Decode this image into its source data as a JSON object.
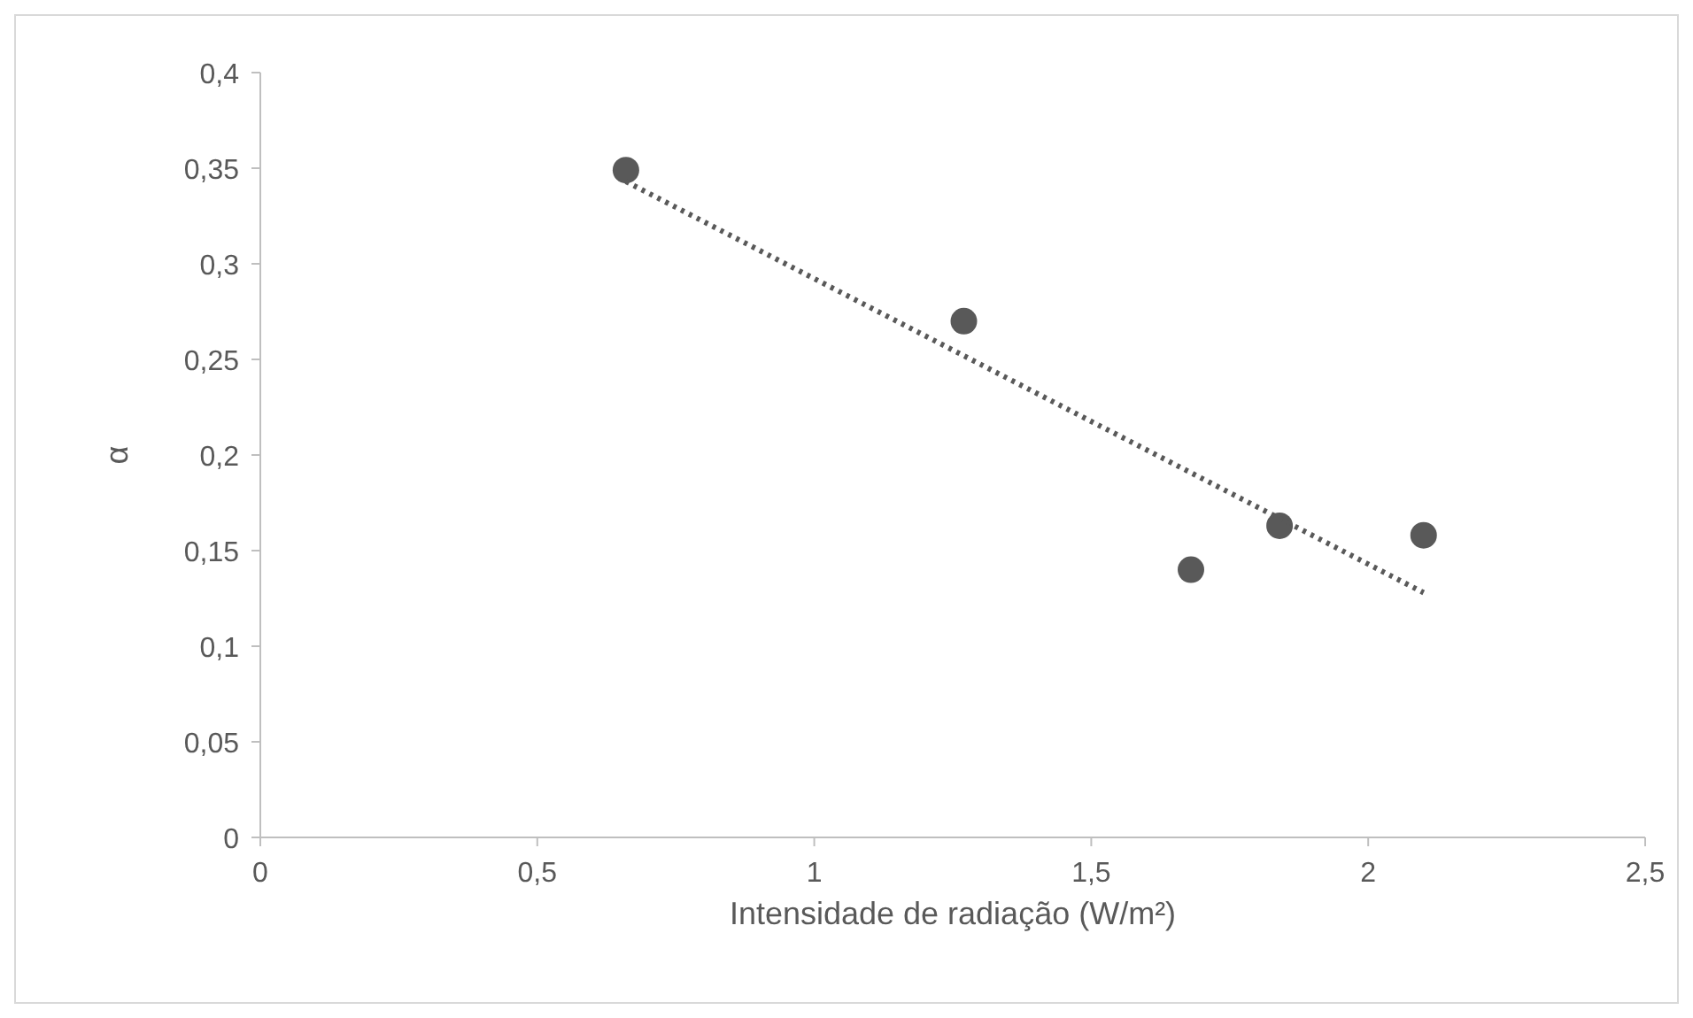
{
  "chart_data": {
    "type": "scatter",
    "xlabel": "Intensidade de radiação (W/m²)",
    "ylabel": "α",
    "xlim": [
      0,
      2.5
    ],
    "ylim": [
      0,
      0.4
    ],
    "xticks": [
      0,
      {
        "value": 0.5,
        "label": "0,5"
      },
      1,
      {
        "value": 1.5,
        "label": "1,5"
      },
      2,
      {
        "value": 2.5,
        "label": "2,5"
      }
    ],
    "yticks": [
      0,
      {
        "value": 0.05,
        "label": "0,05"
      },
      {
        "value": 0.1,
        "label": "0,1"
      },
      {
        "value": 0.15,
        "label": "0,15"
      },
      {
        "value": 0.2,
        "label": "0,2"
      },
      {
        "value": 0.25,
        "label": "0,25"
      },
      {
        "value": 0.3,
        "label": "0,3"
      },
      {
        "value": 0.35,
        "label": "0,35"
      },
      {
        "value": 0.4,
        "label": "0,4"
      }
    ],
    "grid": false,
    "series": [
      {
        "color": "#595959",
        "marker": "circle",
        "x": [
          0.66,
          1.27,
          1.68,
          1.84,
          2.1
        ],
        "values": [
          0.349,
          0.27,
          0.14,
          0.163,
          0.158
        ]
      },
      {
        "type": "line",
        "color": "#595959",
        "line_style": "dotted",
        "marker": "none",
        "x": [
          0.66,
          2.1
        ],
        "values": [
          0.343,
          0.128
        ]
      }
    ]
  }
}
